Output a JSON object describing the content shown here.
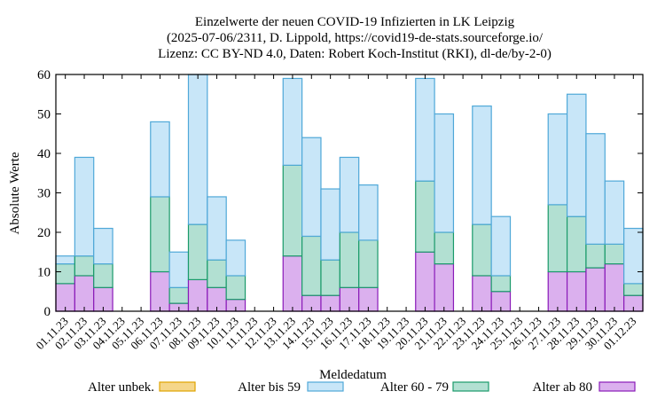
{
  "chart_data": {
    "type": "bar",
    "stacked": true,
    "title": [
      "Einzelwerte der neuen COVID-19 Infizierten in LK Leipzig",
      "(2025-07-06/2311, D. Lippold, https://covid19-de-stats.sourceforge.io/",
      "Lizenz: CC BY-ND 4.0, Daten: Robert Koch-Institut (RKI), dl-de/by-2-0)"
    ],
    "xlabel": "Meldedatum",
    "ylabel": "Absolute Werte",
    "ylim": [
      0,
      60
    ],
    "yticks": [
      0,
      10,
      20,
      30,
      40,
      50,
      60
    ],
    "grid": false,
    "legend_position": "bottom",
    "categories": [
      "01.11.23",
      "02.11.23",
      "03.11.23",
      "04.11.23",
      "05.11.23",
      "06.11.23",
      "07.11.23",
      "08.11.23",
      "09.11.23",
      "10.11.23",
      "11.11.23",
      "12.11.23",
      "13.11.23",
      "14.11.23",
      "15.11.23",
      "16.11.23",
      "17.11.23",
      "18.11.23",
      "19.11.23",
      "20.11.23",
      "21.11.23",
      "22.11.23",
      "23.11.23",
      "24.11.23",
      "25.11.23",
      "26.11.23",
      "27.11.23",
      "28.11.23",
      "29.11.23",
      "30.11.23",
      "01.12.23"
    ],
    "series": [
      {
        "name": "Alter unbek.",
        "color": "#f5d68a",
        "stroke": "#e0a300",
        "values": [
          0,
          0,
          0,
          0,
          0,
          0,
          0,
          0,
          0,
          0,
          0,
          0,
          0,
          0,
          0,
          0,
          0,
          0,
          0,
          0,
          0,
          0,
          0,
          0,
          0,
          0,
          0,
          0,
          0,
          0,
          0
        ]
      },
      {
        "name": "Alter bis 59",
        "color": "#c8e6f8",
        "stroke": "#4fa8d8",
        "values": [
          2,
          25,
          9,
          0,
          0,
          19,
          9,
          38,
          16,
          9,
          0,
          0,
          22,
          25,
          18,
          19,
          14,
          0,
          0,
          26,
          30,
          0,
          30,
          15,
          0,
          0,
          23,
          31,
          28,
          16,
          14
        ]
      },
      {
        "name": "Alter 60 - 79",
        "color": "#b2e0d2",
        "stroke": "#1a9a6a",
        "values": [
          5,
          5,
          6,
          0,
          0,
          19,
          4,
          14,
          7,
          6,
          0,
          0,
          23,
          15,
          9,
          14,
          12,
          0,
          0,
          18,
          8,
          0,
          13,
          4,
          0,
          0,
          17,
          14,
          6,
          5,
          3
        ]
      },
      {
        "name": "Alter ab 80",
        "color": "#dbb0ee",
        "stroke": "#8a1ab8",
        "values": [
          7,
          9,
          6,
          0,
          0,
          10,
          2,
          8,
          6,
          3,
          0,
          0,
          14,
          4,
          4,
          6,
          6,
          0,
          0,
          15,
          12,
          0,
          9,
          5,
          0,
          0,
          10,
          10,
          11,
          12,
          4
        ]
      }
    ]
  }
}
